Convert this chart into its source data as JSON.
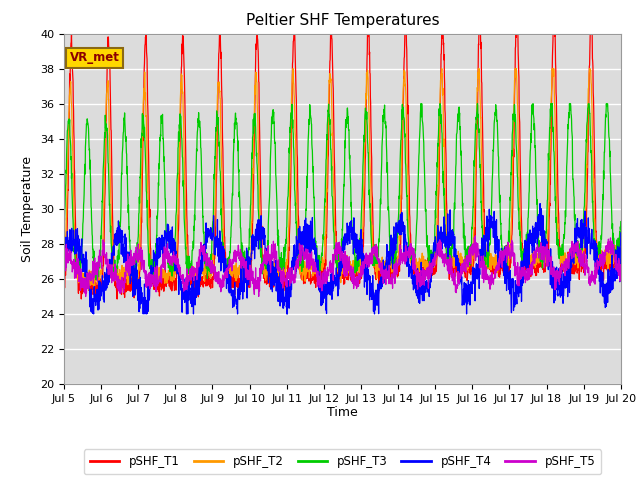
{
  "title": "Peltier SHF Temperatures",
  "ylabel": "Soil Temperature",
  "xlabel": "Time",
  "annotation": "VR_met",
  "ylim": [
    20,
    40
  ],
  "series": [
    "pSHF_T1",
    "pSHF_T2",
    "pSHF_T3",
    "pSHF_T4",
    "pSHF_T5"
  ],
  "colors": [
    "#ff0000",
    "#ff9900",
    "#00cc00",
    "#0000ff",
    "#cc00cc"
  ],
  "background_color": "#dcdcdc",
  "xtick_labels": [
    "Jul 5",
    "Jul 6",
    "Jul 7",
    "Jul 8",
    "Jul 9",
    "Jul 10",
    "Jul 11",
    "Jul 12",
    "Jul 13",
    "Jul 14",
    "Jul 15",
    "Jul 16",
    "Jul 17",
    "Jul 18",
    "Jul 19",
    "Jul 20"
  ],
  "n_days": 15,
  "pts_per_day": 144,
  "figsize": [
    6.4,
    4.8
  ],
  "dpi": 100
}
